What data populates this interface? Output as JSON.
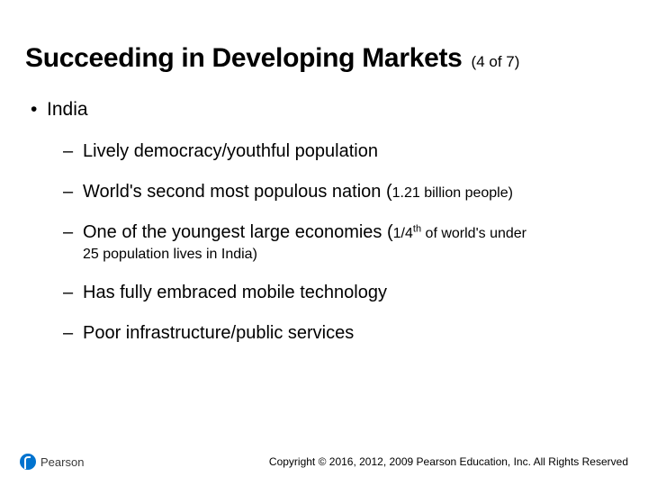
{
  "colors": {
    "background": "#ffffff",
    "text": "#000000",
    "logo_blue": "#0073cf",
    "logo_text": "#3a3a3a"
  },
  "typography": {
    "title_fontsize": 30,
    "title_weight": 700,
    "pager_fontsize": 17,
    "level1_fontsize": 21,
    "level2_fontsize": 20,
    "small_fontsize": 16,
    "copyright_fontsize": 12,
    "logo_text_fontsize": 13,
    "font_family": "Arial"
  },
  "header": {
    "title": "Succeeding in Developing Markets",
    "pager": "(4 of 7)"
  },
  "content": {
    "level1": {
      "bullet": "•",
      "text": "India"
    },
    "items": [
      {
        "dash": "–",
        "main": "Lively democracy/youthful population",
        "small": "",
        "cont": ""
      },
      {
        "dash": "–",
        "main": "World's second most populous nation (",
        "small": "1.21 billion people)",
        "cont": ""
      },
      {
        "dash": "–",
        "main": "One of the youngest large economies (",
        "small_prefix": "1/4",
        "sup": "th",
        "small_suffix": " of world's under",
        "cont": "25 population lives in India)"
      },
      {
        "dash": "–",
        "main": "Has fully embraced mobile technology",
        "small": "",
        "cont": ""
      },
      {
        "dash": "–",
        "main": "Poor infrastructure/public services",
        "small": "",
        "cont": ""
      }
    ]
  },
  "footer": {
    "logo_text": "Pearson",
    "copyright": "Copyright © 2016, 2012, 2009 Pearson Education, Inc. All Rights Reserved"
  }
}
